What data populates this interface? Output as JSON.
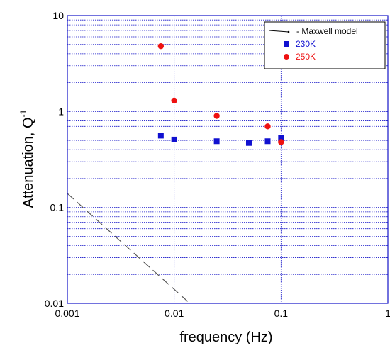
{
  "chart_data": {
    "type": "scatter",
    "title": "",
    "xlabel": "frequency (Hz)",
    "ylabel": "Attenuation, Q",
    "ylabel_superscript": "-1",
    "x_scale": "log",
    "y_scale": "log",
    "xlim": [
      0.001,
      1
    ],
    "ylim": [
      0.01,
      10
    ],
    "x_ticks": [
      {
        "value": 0.001,
        "label": "0.001"
      },
      {
        "value": 0.01,
        "label": "0.01"
      },
      {
        "value": 0.1,
        "label": "0.1"
      },
      {
        "value": 1,
        "label": "1"
      }
    ],
    "y_ticks": [
      {
        "value": 0.01,
        "label": "0.01"
      },
      {
        "value": 0.1,
        "label": "0.1"
      },
      {
        "value": 1,
        "label": "1"
      },
      {
        "value": 10,
        "label": "10"
      }
    ],
    "grid": {
      "x": "major",
      "y": "major-and-minor",
      "style": "dotted",
      "color": "#1414c8"
    },
    "legend_position": "top-right",
    "series": [
      {
        "name": "Maxwell model",
        "legend_label": "- Maxwell model",
        "kind": "line",
        "style": "dashed",
        "color": "#555555",
        "points": [
          [
            0.001,
            0.14
          ],
          [
            0.014,
            0.01
          ]
        ]
      },
      {
        "name": "230K",
        "kind": "marker",
        "marker": "square",
        "color": "#1010d0",
        "points": [
          [
            0.0075,
            0.56
          ],
          [
            0.01,
            0.51
          ],
          [
            0.025,
            0.49
          ],
          [
            0.05,
            0.47
          ],
          [
            0.075,
            0.49
          ],
          [
            0.1,
            0.53
          ]
        ]
      },
      {
        "name": "250K",
        "kind": "marker",
        "marker": "circle",
        "color": "#ee1111",
        "points": [
          [
            0.0075,
            4.8
          ],
          [
            0.01,
            1.3
          ],
          [
            0.025,
            0.9
          ],
          [
            0.075,
            0.7
          ],
          [
            0.1,
            0.48
          ]
        ]
      }
    ]
  }
}
